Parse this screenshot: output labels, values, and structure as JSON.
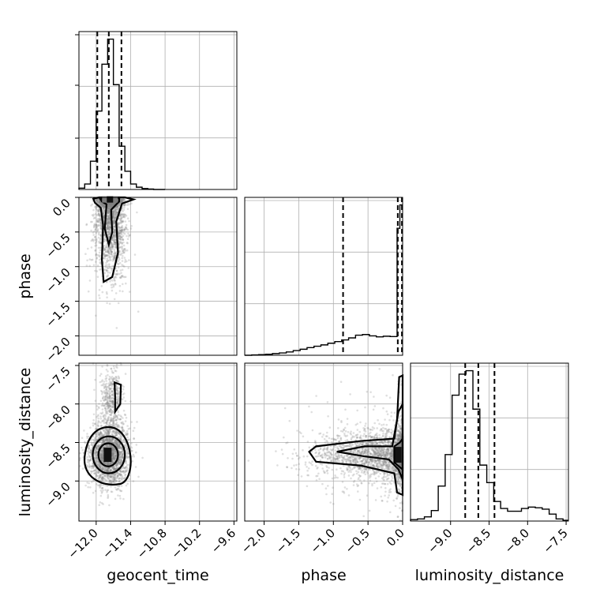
{
  "chart_data": {
    "type": "corner",
    "parameters": [
      "geocent_time",
      "phase",
      "luminosity_distance"
    ],
    "axes": {
      "geocent_time": {
        "label": "geocent_time",
        "range": [
          -12.3,
          -9.55
        ],
        "ticks": [
          -12.0,
          -11.4,
          -10.8,
          -10.2,
          -9.6
        ],
        "tick_labels": [
          "−12.0",
          "−11.4",
          "−10.8",
          "−10.2",
          "−9.6"
        ]
      },
      "phase": {
        "label": "phase",
        "range": [
          -2.28,
          0.0
        ],
        "ticks_x": [
          -2.0,
          -1.5,
          -1.0,
          -0.5,
          0.0
        ],
        "tick_labels_x": [
          "−2.0",
          "−1.5",
          "−1.0",
          "−0.5",
          "0.0"
        ],
        "ticks_y": [
          0.0,
          -0.5,
          -1.0,
          -1.5,
          -2.0
        ],
        "tick_labels_y": [
          "0.0",
          "−0.5",
          "−1.0",
          "−1.5",
          "−2.0"
        ]
      },
      "luminosity_distance": {
        "label": "luminosity_distance",
        "range": [
          -9.52,
          -7.47
        ],
        "ticks_x": [
          -9.0,
          -8.5,
          -8.0,
          -7.5
        ],
        "tick_labels_x": [
          "−9.0",
          "−8.5",
          "−8.0",
          "−7.5"
        ],
        "ticks_y": [
          -7.5,
          -8.0,
          -8.5,
          -9.0
        ],
        "tick_labels_y": [
          "−7.5",
          "−8.0",
          "−8.5",
          "−9.0"
        ]
      }
    },
    "histograms": {
      "geocent_time": {
        "bin_edges": [
          -12.3,
          -12.2,
          -12.1,
          -12.0,
          -11.9,
          -11.8,
          -11.7,
          -11.6,
          -11.5,
          -11.4,
          -11.3,
          -11.2,
          -11.1,
          -11.0,
          -10.9,
          -10.8
        ],
        "counts": [
          3,
          12,
          62,
          172,
          275,
          330,
          230,
          95,
          40,
          12,
          5,
          2,
          1,
          0,
          0
        ],
        "quantiles": [
          -11.98,
          -11.78,
          -11.56
        ]
      },
      "phase": {
        "bin_edges": [
          -2.28,
          -2.18,
          -2.08,
          -1.98,
          -1.88,
          -1.78,
          -1.68,
          -1.58,
          -1.48,
          -1.38,
          -1.28,
          -1.18,
          -1.08,
          -0.98,
          -0.88,
          -0.78,
          -0.68,
          -0.58,
          -0.48,
          -0.38,
          -0.28,
          -0.18,
          -0.08,
          -0.04,
          0.0
        ],
        "counts": [
          0,
          1,
          2,
          3,
          5,
          7,
          10,
          14,
          18,
          23,
          27,
          31,
          36,
          41,
          46,
          52,
          60,
          62,
          58,
          55,
          57,
          56,
          380,
          450
        ],
        "quantiles": [
          -0.86,
          -0.07,
          -0.01
        ]
      },
      "luminosity_distance": {
        "bin_edges": [
          -9.52,
          -9.43,
          -9.34,
          -9.25,
          -9.16,
          -9.07,
          -8.98,
          -8.89,
          -8.8,
          -8.71,
          -8.62,
          -8.53,
          -8.44,
          -8.35,
          -8.26,
          -8.17,
          -8.08,
          -7.99,
          -7.9,
          -7.81,
          -7.72,
          -7.63,
          -7.54,
          -7.47
        ],
        "counts": [
          2,
          3,
          6,
          15,
          50,
          95,
          180,
          210,
          215,
          160,
          80,
          55,
          28,
          18,
          14,
          14,
          18,
          20,
          19,
          17,
          10,
          3,
          1
        ],
        "quantiles": [
          -8.81,
          -8.64,
          -8.43
        ]
      }
    },
    "samples_2d": [
      {
        "x": "geocent_time",
        "y": "phase",
        "mean": [
          -11.75,
          -0.35
        ],
        "sd": [
          0.15,
          0.45
        ],
        "shape": "tail-down"
      },
      {
        "x": "geocent_time",
        "y": "luminosity_distance",
        "mean": [
          -11.78,
          -8.66
        ],
        "sd": [
          0.14,
          0.25
        ],
        "shape": "blob-with-tail-up"
      },
      {
        "x": "phase",
        "y": "luminosity_distance",
        "mean": [
          -0.25,
          -8.66
        ],
        "sd": [
          0.55,
          0.12
        ],
        "shape": "tail-left"
      }
    ]
  }
}
